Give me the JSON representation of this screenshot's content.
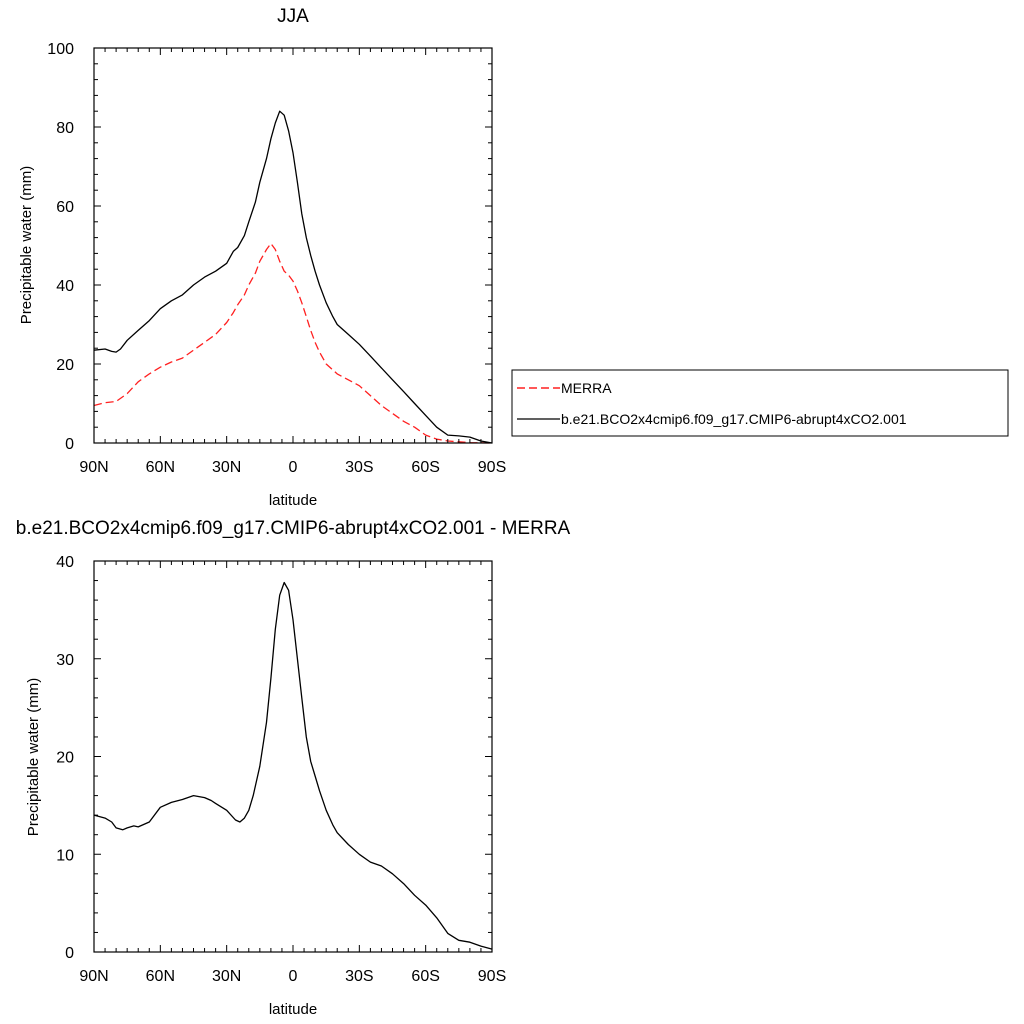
{
  "colors": {
    "merra": "#ff2020",
    "model": "#000000",
    "frame": "#000000",
    "legend_border": "#000000"
  },
  "chart_data": [
    {
      "type": "line",
      "title": "JJA",
      "xlabel": "latitude",
      "ylabel": "Precipitable water (mm)",
      "xlim": [
        90,
        -90
      ],
      "ylim": [
        0,
        100
      ],
      "x_ticks": [
        90,
        60,
        30,
        0,
        -30,
        -60,
        -90
      ],
      "x_tick_labels": [
        "90N",
        "60N",
        "30N",
        "0",
        "30S",
        "60S",
        "90S"
      ],
      "y_ticks": [
        0,
        20,
        40,
        60,
        80,
        100
      ],
      "y_tick_labels": [
        "0",
        "20",
        "40",
        "60",
        "80",
        "100"
      ],
      "legend": {
        "placement": "right",
        "entries": [
          "MERRA",
          "b.e21.BCO2x4cmip6.f09_g17.CMIP6-abrupt4xCO2.001"
        ]
      },
      "series": [
        {
          "name": "MERRA",
          "style": "dashed",
          "color": "#ff2020",
          "x": [
            90,
            85,
            80,
            75,
            70,
            65,
            60,
            55,
            50,
            45,
            40,
            35,
            30,
            27,
            25,
            22,
            20,
            17,
            15,
            12,
            10,
            8,
            6,
            4,
            2,
            0,
            -2,
            -4,
            -6,
            -8,
            -10,
            -12,
            -15,
            -18,
            -20,
            -25,
            -30,
            -35,
            -40,
            -45,
            -50,
            -55,
            -60,
            -65,
            -70,
            -75,
            -80,
            -85,
            -90
          ],
          "y": [
            9.5,
            10.2,
            10.5,
            12.5,
            15.5,
            17.5,
            19.2,
            20.5,
            21.5,
            23.5,
            25.5,
            27.5,
            30.5,
            33,
            35,
            37.5,
            40,
            43,
            46,
            49,
            50.5,
            49,
            46,
            43.5,
            42.5,
            41,
            38.5,
            35.5,
            32,
            28.5,
            25.5,
            23,
            20,
            18.5,
            17.5,
            16,
            14.5,
            12,
            9.5,
            7.5,
            5.5,
            4,
            2,
            1,
            0.5,
            0.3,
            0.1,
            0.05,
            0
          ]
        },
        {
          "name": "b.e21.BCO2x4cmip6.f09_g17.CMIP6-abrupt4xCO2.001",
          "style": "solid",
          "color": "#000000",
          "x": [
            90,
            85,
            82,
            80,
            78,
            75,
            70,
            65,
            60,
            55,
            50,
            45,
            40,
            35,
            30,
            27,
            25,
            22,
            20,
            17,
            15,
            12,
            10,
            8,
            6,
            4,
            2,
            0,
            -2,
            -4,
            -6,
            -8,
            -10,
            -12,
            -15,
            -18,
            -20,
            -25,
            -30,
            -35,
            -40,
            -45,
            -50,
            -55,
            -60,
            -65,
            -70,
            -75,
            -80,
            -85,
            -90
          ],
          "y": [
            23.5,
            23.8,
            23.2,
            23.0,
            23.8,
            26,
            28.5,
            31,
            34,
            36,
            37.5,
            40,
            42,
            43.5,
            45.5,
            48.5,
            49.5,
            52.5,
            56,
            61,
            66,
            72,
            77,
            81,
            84,
            83,
            79,
            73.5,
            66,
            58,
            52,
            47.5,
            43.5,
            40,
            35.5,
            32,
            30,
            27.5,
            25,
            22,
            19,
            16,
            13,
            10,
            7,
            4,
            2,
            1.8,
            1.5,
            0.5,
            0
          ]
        }
      ]
    },
    {
      "type": "line",
      "title": "b.e21.BCO2x4cmip6.f09_g17.CMIP6-abrupt4xCO2.001 - MERRA",
      "xlabel": "latitude",
      "ylabel": "Precipitable water (mm)",
      "xlim": [
        90,
        -90
      ],
      "ylim": [
        0,
        40
      ],
      "x_ticks": [
        90,
        60,
        30,
        0,
        -30,
        -60,
        -90
      ],
      "x_tick_labels": [
        "90N",
        "60N",
        "30N",
        "0",
        "30S",
        "60S",
        "90S"
      ],
      "y_ticks": [
        0,
        10,
        20,
        30,
        40
      ],
      "y_tick_labels": [
        "0",
        "10",
        "20",
        "30",
        "40"
      ],
      "series": [
        {
          "style": "solid",
          "color": "#000000",
          "x": [
            90,
            85,
            82,
            80,
            77,
            75,
            72,
            70,
            65,
            60,
            55,
            50,
            45,
            40,
            37,
            35,
            30,
            26,
            24,
            22,
            20,
            18,
            15,
            12,
            10,
            8,
            6,
            4,
            2,
            0,
            -2,
            -4,
            -6,
            -8,
            -10,
            -12,
            -15,
            -18,
            -20,
            -25,
            -30,
            -35,
            -40,
            -45,
            -50,
            -55,
            -60,
            -65,
            -70,
            -75,
            -80,
            -85,
            -90
          ],
          "y": [
            14,
            13.7,
            13.3,
            12.7,
            12.5,
            12.7,
            12.9,
            12.8,
            13.3,
            14.8,
            15.3,
            15.6,
            16,
            15.8,
            15.5,
            15.2,
            14.5,
            13.5,
            13.3,
            13.7,
            14.5,
            16,
            19,
            23.5,
            28,
            33,
            36.5,
            37.8,
            37,
            34,
            30,
            26,
            22,
            19.5,
            18,
            16.5,
            14.5,
            13,
            12.2,
            11,
            10,
            9.2,
            8.8,
            8,
            7,
            5.8,
            4.8,
            3.5,
            1.9,
            1.2,
            1.0,
            0.6,
            0.3
          ]
        }
      ]
    }
  ]
}
